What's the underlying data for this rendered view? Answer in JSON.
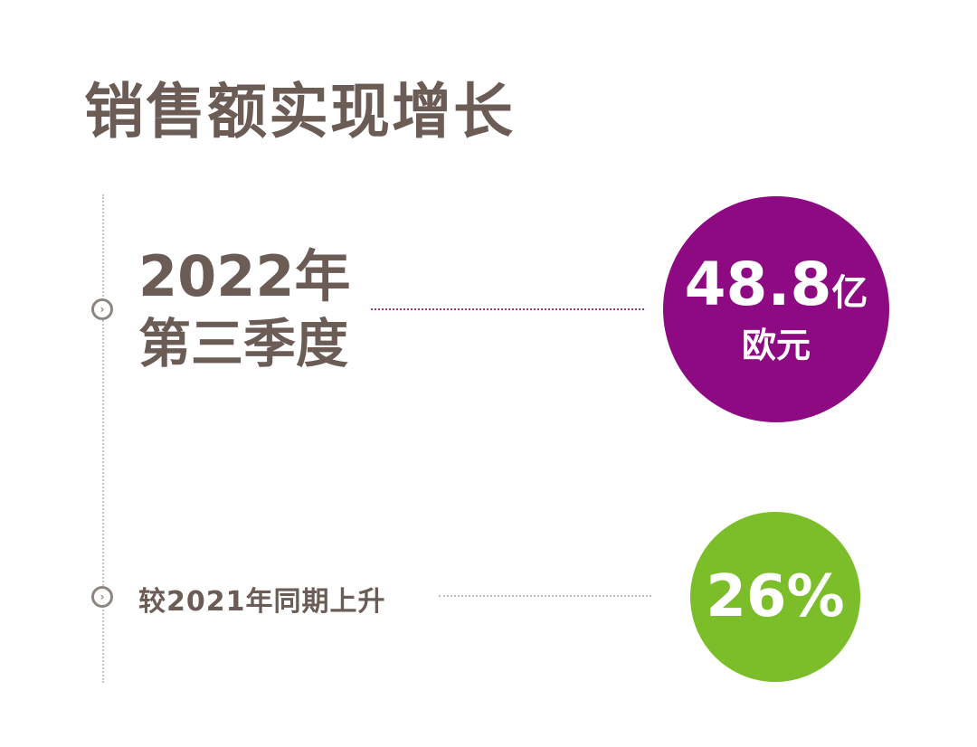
{
  "title": "销售额实现增长",
  "period": {
    "year": "2022年",
    "quarter": "第三季度"
  },
  "sales": {
    "amount": "48.8",
    "amount_unit": "亿",
    "currency": "欧元",
    "color": "#8e0a82"
  },
  "growth": {
    "label": "较2021年同期上升",
    "value": "26%",
    "color": "#7cbd2a"
  },
  "icons": {
    "bullet": "chevron-right-circle-icon"
  },
  "colors": {
    "text": "#6b5c55"
  }
}
